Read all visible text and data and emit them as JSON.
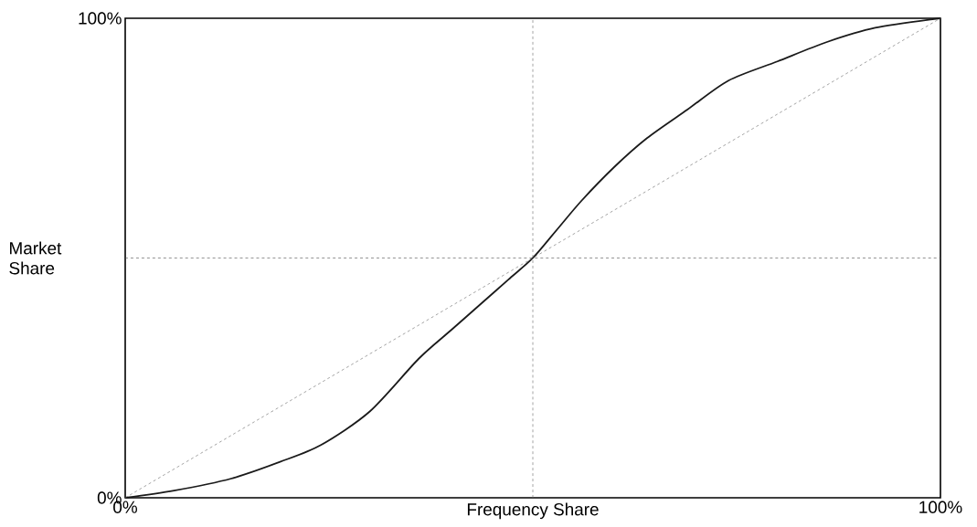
{
  "chart_data": {
    "type": "line",
    "xlabel": "Frequency Share",
    "ylabel": "Market Share",
    "xlim": [
      0,
      100
    ],
    "ylim": [
      0,
      100
    ],
    "xticks": [
      {
        "value": 0,
        "label": "0%"
      },
      {
        "value": 100,
        "label": "100%"
      }
    ],
    "yticks": [
      {
        "value": 0,
        "label": "0%"
      },
      {
        "value": 100,
        "label": "100%"
      }
    ],
    "x": [
      0,
      6,
      13,
      19,
      24,
      30,
      36,
      40,
      44,
      47,
      50,
      53,
      56,
      60,
      64,
      69,
      74,
      80,
      86,
      92,
      100
    ],
    "marker": "none",
    "ref_lines": [
      {
        "axis": "x",
        "value": 50,
        "color": "#666666",
        "line_style": "dashed"
      },
      {
        "axis": "y",
        "value": 50,
        "color": "#4d4d4d",
        "line_style": "dashed"
      }
    ],
    "series": [
      {
        "color": "#1a1a1a",
        "line_style": "solid",
        "values": [
          0,
          1.5,
          4,
          7.5,
          11,
          18,
          29,
          35,
          41,
          45.5,
          50,
          56,
          62,
          69,
          75,
          81,
          87,
          91,
          95,
          98,
          100
        ]
      },
      {
        "color": "#666666",
        "line_style": "dashed",
        "x": [
          0,
          100
        ],
        "values": [
          0,
          100
        ]
      }
    ]
  }
}
